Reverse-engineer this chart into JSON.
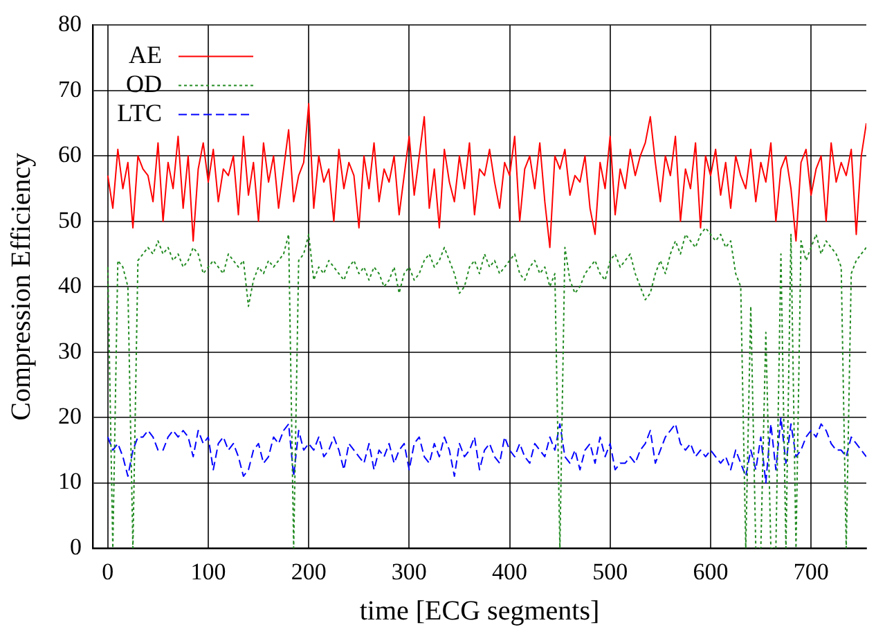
{
  "chart_data": {
    "type": "line",
    "xlabel": "time [ECG segments]",
    "ylabel": "Compression Efficiency",
    "x": [
      0,
      5,
      10,
      15,
      20,
      25,
      30,
      35,
      40,
      45,
      50,
      55,
      60,
      65,
      70,
      75,
      80,
      85,
      90,
      95,
      100,
      105,
      110,
      115,
      120,
      125,
      130,
      135,
      140,
      145,
      150,
      155,
      160,
      165,
      170,
      175,
      180,
      185,
      190,
      195,
      200,
      205,
      210,
      215,
      220,
      225,
      230,
      235,
      240,
      245,
      250,
      255,
      260,
      265,
      270,
      275,
      280,
      285,
      290,
      295,
      300,
      305,
      310,
      315,
      320,
      325,
      330,
      335,
      340,
      345,
      350,
      355,
      360,
      365,
      370,
      375,
      380,
      385,
      390,
      395,
      400,
      405,
      410,
      415,
      420,
      425,
      430,
      435,
      440,
      445,
      450,
      455,
      460,
      465,
      470,
      475,
      480,
      485,
      490,
      495,
      500,
      505,
      510,
      515,
      520,
      525,
      530,
      535,
      540,
      545,
      550,
      555,
      560,
      565,
      570,
      575,
      580,
      585,
      590,
      595,
      600,
      605,
      610,
      615,
      620,
      625,
      630,
      635,
      640,
      645,
      650,
      655,
      660,
      665,
      670,
      675,
      680,
      685,
      690,
      695,
      700,
      705,
      710,
      715,
      720,
      725,
      730,
      735,
      740,
      745,
      750,
      755
    ],
    "xlim": [
      -15,
      755
    ],
    "xticks": [
      0,
      100,
      200,
      300,
      400,
      500,
      600,
      700
    ],
    "ylim": [
      0,
      80
    ],
    "yticks": [
      0,
      10,
      20,
      30,
      40,
      50,
      60,
      70,
      80
    ],
    "grid": true,
    "legend": "top left",
    "marker": "none",
    "series": [
      {
        "name": "AE",
        "color": "#ff0000",
        "line_style": "solid",
        "values": [
          57,
          52,
          61,
          55,
          59,
          49,
          60,
          58,
          57,
          53,
          62,
          50,
          59,
          55,
          63,
          52,
          60,
          47,
          58,
          62,
          56,
          61,
          53,
          58,
          57,
          60,
          51,
          63,
          54,
          59,
          50,
          62,
          56,
          60,
          52,
          58,
          64,
          53,
          57,
          59,
          68,
          52,
          60,
          56,
          58,
          50,
          61,
          55,
          59,
          57,
          49,
          60,
          55,
          62,
          53,
          58,
          56,
          60,
          51,
          57,
          63,
          54,
          60,
          66,
          52,
          58,
          49,
          61,
          56,
          53,
          60,
          55,
          62,
          51,
          58,
          57,
          61,
          56,
          52,
          59,
          57,
          63,
          50,
          58,
          60,
          55,
          62,
          53,
          46,
          60,
          58,
          61,
          54,
          57,
          56,
          60,
          52,
          48,
          59,
          55,
          63,
          51,
          58,
          55,
          61,
          57,
          60,
          62,
          66,
          59,
          53,
          60,
          57,
          63,
          50,
          58,
          55,
          62,
          49,
          60,
          57,
          61,
          54,
          59,
          52,
          60,
          57,
          55,
          61,
          53,
          59,
          56,
          62,
          50,
          58,
          60,
          55,
          47,
          59,
          61,
          54,
          58,
          60,
          50,
          62,
          56,
          59,
          57,
          61,
          48,
          60,
          65
        ]
      },
      {
        "name": "OD",
        "color": "#228b22",
        "line_style": "dotted",
        "values": [
          43,
          0,
          44,
          43,
          40,
          0,
          44,
          45,
          46,
          45,
          47,
          45,
          46,
          44,
          45,
          43,
          44,
          46,
          45,
          42,
          43,
          44,
          43,
          42,
          45,
          44,
          43,
          44,
          37,
          41,
          43,
          42,
          44,
          43,
          44,
          45,
          48,
          0,
          44,
          45,
          48,
          41,
          43,
          42,
          44,
          43,
          42,
          41,
          43,
          44,
          42,
          43,
          41,
          43,
          42,
          40,
          41,
          43,
          39,
          42,
          43,
          41,
          42,
          44,
          45,
          43,
          44,
          46,
          44,
          42,
          39,
          40,
          43,
          44,
          42,
          45,
          43,
          44,
          42,
          43,
          44,
          45,
          42,
          41,
          43,
          44,
          42,
          43,
          40,
          42,
          0,
          46,
          41,
          39,
          40,
          42,
          43,
          44,
          42,
          41,
          44,
          45,
          43,
          44,
          45,
          42,
          40,
          38,
          39,
          42,
          44,
          42,
          45,
          47,
          45,
          48,
          47,
          46,
          48,
          49,
          48,
          47,
          48,
          46,
          47,
          42,
          40,
          0,
          37,
          0,
          0,
          33,
          0,
          0,
          45,
          0,
          48,
          0,
          47,
          44,
          46,
          48,
          45,
          47,
          46,
          45,
          43,
          0,
          42,
          44,
          45,
          46
        ]
      },
      {
        "name": "LTC",
        "color": "#0000ff",
        "line_style": "dashed",
        "values": [
          17,
          15,
          16,
          14,
          11,
          15,
          17,
          17,
          18,
          17,
          15,
          15,
          17,
          18,
          17,
          18,
          17,
          14,
          18,
          16,
          17,
          12,
          16,
          17,
          15,
          16,
          14,
          11,
          12,
          15,
          16,
          13,
          14,
          17,
          16,
          18,
          19,
          11,
          18,
          15,
          16,
          15,
          17,
          14,
          15,
          17,
          15,
          12,
          16,
          15,
          14,
          13,
          16,
          12,
          15,
          14,
          16,
          13,
          15,
          16,
          12,
          16,
          17,
          14,
          13,
          16,
          14,
          17,
          15,
          11,
          16,
          14,
          15,
          17,
          12,
          15,
          16,
          14,
          13,
          17,
          15,
          14,
          16,
          14,
          13,
          16,
          15,
          14,
          17,
          15,
          19,
          14,
          13,
          15,
          12,
          15,
          16,
          13,
          17,
          14,
          16,
          12,
          13,
          13,
          14,
          13,
          15,
          16,
          18,
          13,
          15,
          17,
          18,
          19,
          16,
          15,
          16,
          14,
          15,
          14,
          15,
          14,
          13,
          14,
          12,
          15,
          13,
          11,
          15,
          12,
          17,
          10,
          19,
          12,
          20,
          13,
          19,
          14,
          15,
          17,
          18,
          17,
          19,
          18,
          16,
          15,
          15,
          14,
          17,
          16,
          15,
          14
        ]
      }
    ]
  }
}
